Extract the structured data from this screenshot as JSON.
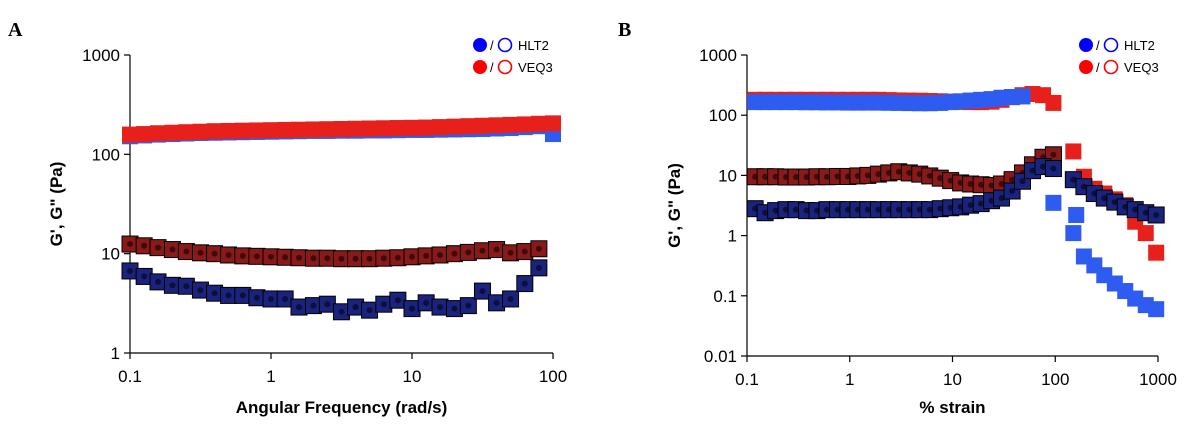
{
  "chart_data": [
    {
      "type": "scatter",
      "panel_label": "A",
      "xlabel": "Angular Frequency (rad/s)",
      "ylabel": "G', G\" (Pa)",
      "x_scale": "log",
      "y_scale": "log",
      "xlim": [
        0.1,
        100
      ],
      "ylim": [
        1,
        1000
      ],
      "x_ticks": [
        "0.1",
        "1",
        "10",
        "100"
      ],
      "y_ticks": [
        "1",
        "10",
        "100",
        "1000"
      ],
      "grid": false,
      "legend_position": "top-right",
      "legend": [
        {
          "sep": "/",
          "label": "HLT2",
          "color": "#0000ff"
        },
        {
          "sep": "/",
          "label": "VEQ3",
          "color": "#ff0000"
        }
      ],
      "series": [
        {
          "name": "HLT2",
          "modulus": "G'",
          "color": "#2f5cf0",
          "dark": false,
          "x": [
            0.1,
            0.126,
            0.158,
            0.2,
            0.251,
            0.316,
            0.398,
            0.5,
            0.631,
            0.794,
            1,
            1.26,
            1.58,
            2,
            2.51,
            3.16,
            3.98,
            5,
            6.31,
            7.94,
            10,
            12.6,
            15.8,
            20,
            25.1,
            31.6,
            39.8,
            50,
            63.1,
            79.4,
            100
          ],
          "y": [
            152,
            155,
            158,
            160,
            162,
            164,
            165,
            166,
            167,
            168,
            169,
            170,
            171,
            172,
            172,
            173,
            173,
            174,
            174,
            175,
            176,
            176,
            177,
            178,
            179,
            180,
            182,
            184,
            188,
            192,
            160
          ]
        },
        {
          "name": "VEQ3",
          "modulus": "G'",
          "color": "#e8201c",
          "dark": false,
          "x": [
            0.1,
            0.126,
            0.158,
            0.2,
            0.251,
            0.316,
            0.398,
            0.5,
            0.631,
            0.794,
            1,
            1.26,
            1.58,
            2,
            2.51,
            3.16,
            3.98,
            5,
            6.31,
            7.94,
            10,
            12.6,
            15.8,
            20,
            25.1,
            31.6,
            39.8,
            50,
            63.1,
            79.4,
            100
          ],
          "y": [
            158,
            160,
            163,
            165,
            167,
            169,
            171,
            172,
            173,
            174,
            175,
            176,
            177,
            178,
            179,
            180,
            181,
            182,
            183,
            184,
            185,
            186,
            188,
            190,
            192,
            194,
            196,
            198,
            200,
            203,
            205
          ]
        },
        {
          "name": "VEQ3",
          "modulus": "G\"",
          "color": "#8a1a1a",
          "dark": true,
          "x": [
            0.1,
            0.126,
            0.158,
            0.2,
            0.251,
            0.316,
            0.398,
            0.5,
            0.631,
            0.794,
            1,
            1.26,
            1.58,
            2,
            2.51,
            3.16,
            3.98,
            5,
            6.31,
            7.94,
            10,
            12.6,
            15.8,
            20,
            25.1,
            31.6,
            39.8,
            50,
            63.1,
            79.4
          ],
          "y": [
            12.5,
            12,
            11.5,
            11,
            10.5,
            10.2,
            10,
            9.7,
            9.5,
            9.4,
            9.3,
            9.2,
            9.1,
            9.0,
            9.0,
            8.9,
            8.9,
            8.9,
            9.0,
            9.1,
            9.3,
            9.5,
            9.7,
            10,
            10.3,
            10.7,
            11,
            10.2,
            10.5,
            11.2
          ]
        },
        {
          "name": "HLT2",
          "modulus": "G\"",
          "color": "#1a237e",
          "dark": true,
          "x": [
            0.1,
            0.126,
            0.158,
            0.2,
            0.251,
            0.316,
            0.398,
            0.5,
            0.631,
            0.794,
            1,
            1.26,
            1.58,
            2,
            2.51,
            3.16,
            3.98,
            5,
            6.31,
            7.94,
            10,
            12.6,
            15.8,
            20,
            25.1,
            31.6,
            39.8,
            50,
            63.1,
            79.4
          ],
          "y": [
            6.7,
            5.9,
            5.2,
            4.8,
            4.7,
            4.3,
            4.0,
            3.8,
            3.8,
            3.6,
            3.5,
            3.5,
            2.9,
            3.0,
            3.1,
            2.6,
            2.9,
            2.7,
            3.1,
            3.4,
            2.8,
            3.2,
            2.9,
            2.8,
            3.0,
            4.2,
            3.2,
            3.5,
            5.0,
            7.2
          ]
        }
      ]
    },
    {
      "type": "scatter",
      "panel_label": "B",
      "xlabel": "% strain",
      "ylabel": "G', G\" (Pa)",
      "x_scale": "log",
      "y_scale": "log",
      "xlim": [
        0.1,
        1000
      ],
      "ylim": [
        0.01,
        1000
      ],
      "x_ticks": [
        "0.1",
        "1",
        "10",
        "100",
        "1000"
      ],
      "y_ticks": [
        "0.01",
        "0.1",
        "1",
        "10",
        "100",
        "1000"
      ],
      "grid": false,
      "legend_position": "top-right",
      "legend": [
        {
          "sep": "/",
          "label": "HLT2",
          "color": "#0000ff"
        },
        {
          "sep": "/",
          "label": "VEQ3",
          "color": "#ff0000"
        }
      ],
      "series": [
        {
          "name": "VEQ3",
          "modulus": "G'",
          "color": "#e8201c",
          "dark": false,
          "x": [
            0.12,
            0.15,
            0.19,
            0.24,
            0.3,
            0.38,
            0.48,
            0.6,
            0.76,
            0.96,
            1.2,
            1.5,
            1.9,
            2.4,
            3,
            3.8,
            4.8,
            6,
            7.6,
            9.6,
            12,
            15,
            19,
            24,
            30,
            38,
            48,
            60,
            76,
            96,
            150,
            190,
            240,
            300,
            380,
            480,
            600,
            760,
            960
          ],
          "y": [
            180,
            180,
            180,
            180,
            180,
            180,
            180,
            180,
            180,
            180,
            180,
            180,
            180,
            178,
            176,
            175,
            174,
            172,
            170,
            168,
            166,
            165,
            165,
            168,
            180,
            200,
            215,
            225,
            215,
            160,
            25,
            9.5,
            6,
            5,
            4,
            3.2,
            1.7,
            1.1,
            0.52
          ]
        },
        {
          "name": "HLT2",
          "modulus": "G'",
          "color": "#2f5cf0",
          "dark": false,
          "x": [
            0.12,
            0.15,
            0.19,
            0.24,
            0.3,
            0.38,
            0.48,
            0.6,
            0.76,
            0.96,
            1.2,
            1.5,
            1.9,
            2.4,
            3,
            3.8,
            4.8,
            6,
            7.6,
            9.6,
            12,
            15,
            19,
            24,
            30,
            38,
            48,
            96,
            150,
            160,
            190,
            240,
            300,
            380,
            480,
            600,
            760,
            960
          ],
          "y": [
            165,
            165,
            165,
            165,
            165,
            164,
            164,
            163,
            163,
            162,
            162,
            162,
            162,
            161,
            160,
            159,
            158,
            158,
            160,
            165,
            170,
            175,
            180,
            185,
            195,
            200,
            205,
            3.5,
            1.1,
            2.2,
            0.45,
            0.32,
            0.22,
            0.16,
            0.12,
            0.09,
            0.07,
            0.06
          ]
        },
        {
          "name": "VEQ3",
          "modulus": "G\"",
          "color": "#8a1a1a",
          "dark": true,
          "x": [
            0.12,
            0.15,
            0.19,
            0.24,
            0.3,
            0.38,
            0.48,
            0.6,
            0.76,
            0.96,
            1.2,
            1.5,
            1.9,
            2.4,
            3,
            3.8,
            4.8,
            6,
            7.6,
            9.6,
            12,
            15,
            19,
            24,
            30,
            38,
            48,
            60,
            76,
            96
          ],
          "y": [
            9.5,
            9.5,
            9.5,
            9.4,
            9.4,
            9.4,
            9.5,
            9.5,
            9.6,
            9.6,
            9.8,
            10,
            10.5,
            11,
            11.5,
            11,
            10.5,
            9.8,
            9,
            8.2,
            7.5,
            7.2,
            7.0,
            6.8,
            7.2,
            8.5,
            11,
            15,
            20,
            22
          ]
        },
        {
          "name": "HLT2",
          "modulus": "G\"",
          "color": "#1a237e",
          "dark": true,
          "x": [
            0.12,
            0.15,
            0.19,
            0.24,
            0.3,
            0.38,
            0.48,
            0.6,
            0.76,
            0.96,
            1.2,
            1.5,
            1.9,
            2.4,
            3,
            3.8,
            4.8,
            6,
            7.6,
            9.6,
            12,
            15,
            19,
            24,
            30,
            38,
            48,
            60,
            76,
            96,
            150,
            190,
            240,
            300,
            380,
            480,
            600,
            760,
            960
          ],
          "y": [
            2.8,
            2.4,
            2.6,
            2.7,
            2.7,
            2.6,
            2.6,
            2.7,
            2.7,
            2.7,
            2.7,
            2.7,
            2.7,
            2.7,
            2.7,
            2.7,
            2.7,
            2.7,
            2.8,
            2.9,
            3.0,
            3.2,
            3.4,
            3.8,
            4.2,
            5.5,
            8,
            12,
            14,
            13,
            8.5,
            6.5,
            5,
            4.2,
            3.6,
            3.0,
            2.7,
            2.4,
            2.2
          ]
        }
      ]
    }
  ]
}
